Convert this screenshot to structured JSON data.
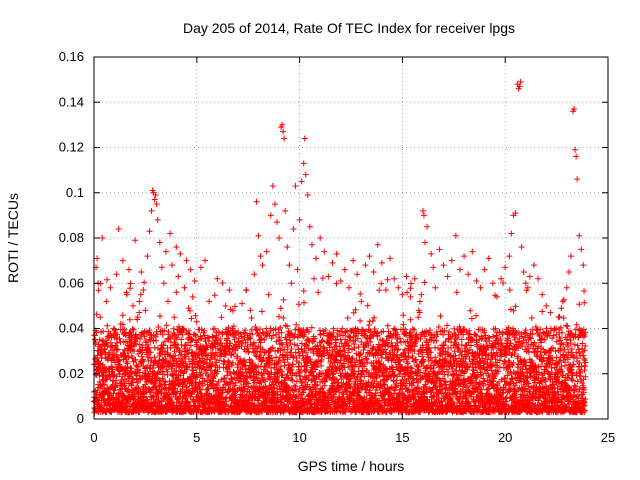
{
  "chart_data": {
    "type": "scatter",
    "title": "Day 205 of 2014, Rate Of TEC Index for receiver lpgs",
    "xlabel": "GPS time / hours",
    "ylabel": "ROTI / TECUs",
    "xlim": [
      0,
      25
    ],
    "ylim": [
      0,
      0.16
    ],
    "xticks": [
      0,
      5,
      10,
      15,
      20,
      25
    ],
    "yticks": [
      0,
      0.02,
      0.04,
      0.06,
      0.08,
      0.1,
      0.12,
      0.14,
      0.16
    ],
    "xtick_labels": [
      "0",
      "5",
      "10",
      "15",
      "20",
      "25"
    ],
    "ytick_labels": [
      "0",
      "0.02",
      "0.04",
      "0.06",
      "0.08",
      "0.1",
      "0.12",
      "0.14",
      "0.16"
    ],
    "grid": true,
    "marker": "+",
    "color": "#ff0000",
    "series": [
      {
        "points": [
          [
            0.0,
            0.012
          ],
          [
            0.1,
            0.067
          ],
          [
            0.15,
            0.071
          ],
          [
            0.2,
            0.06
          ],
          [
            0.3,
            0.045
          ],
          [
            0.4,
            0.08
          ],
          [
            0.5,
            0.031
          ],
          [
            0.6,
            0.052
          ],
          [
            0.7,
            0.022
          ],
          [
            0.8,
            0.058
          ],
          [
            0.9,
            0.015
          ],
          [
            1.0,
            0.036
          ],
          [
            1.1,
            0.064
          ],
          [
            1.2,
            0.084
          ],
          [
            1.3,
            0.042
          ],
          [
            1.4,
            0.07
          ],
          [
            1.5,
            0.028
          ],
          [
            1.6,
            0.055
          ],
          [
            1.7,
            0.066
          ],
          [
            1.8,
            0.038
          ],
          [
            1.9,
            0.05
          ],
          [
            2.0,
            0.079
          ],
          [
            2.1,
            0.044
          ],
          [
            2.2,
            0.033
          ],
          [
            2.3,
            0.065
          ],
          [
            2.4,
            0.057
          ],
          [
            2.5,
            0.048
          ],
          [
            2.6,
            0.072
          ],
          [
            2.7,
            0.083
          ],
          [
            2.8,
            0.092
          ],
          [
            2.85,
            0.101
          ],
          [
            2.9,
            0.1
          ],
          [
            2.95,
            0.097
          ],
          [
            3.0,
            0.099
          ],
          [
            3.05,
            0.095
          ],
          [
            3.1,
            0.088
          ],
          [
            3.2,
            0.078
          ],
          [
            3.3,
            0.067
          ],
          [
            3.4,
            0.06
          ],
          [
            3.5,
            0.074
          ],
          [
            3.6,
            0.052
          ],
          [
            3.7,
            0.082
          ],
          [
            3.8,
            0.068
          ],
          [
            3.9,
            0.045
          ],
          [
            4.0,
            0.076
          ],
          [
            4.1,
            0.063
          ],
          [
            4.2,
            0.073
          ],
          [
            4.3,
            0.04
          ],
          [
            4.4,
            0.058
          ],
          [
            4.5,
            0.07
          ],
          [
            4.6,
            0.049
          ],
          [
            4.7,
            0.066
          ],
          [
            4.8,
            0.054
          ],
          [
            4.9,
            0.061
          ],
          [
            5.0,
            0.043
          ],
          [
            5.2,
            0.067
          ],
          [
            5.4,
            0.07
          ],
          [
            5.6,
            0.052
          ],
          [
            5.8,
            0.036
          ],
          [
            6.0,
            0.062
          ],
          [
            6.2,
            0.045
          ],
          [
            6.4,
            0.05
          ],
          [
            6.6,
            0.03
          ],
          [
            6.8,
            0.041
          ],
          [
            7.0,
            0.038
          ],
          [
            7.2,
            0.051
          ],
          [
            7.4,
            0.057
          ],
          [
            7.6,
            0.048
          ],
          [
            7.8,
            0.064
          ],
          [
            7.9,
            0.096
          ],
          [
            8.0,
            0.081
          ],
          [
            8.1,
            0.072
          ],
          [
            8.2,
            0.068
          ],
          [
            8.4,
            0.074
          ],
          [
            8.5,
            0.055
          ],
          [
            8.6,
            0.09
          ],
          [
            8.7,
            0.103
          ],
          [
            8.8,
            0.095
          ],
          [
            8.9,
            0.087
          ],
          [
            9.0,
            0.08
          ],
          [
            9.1,
            0.129
          ],
          [
            9.15,
            0.13
          ],
          [
            9.2,
            0.127
          ],
          [
            9.25,
            0.124
          ],
          [
            9.3,
            0.092
          ],
          [
            9.4,
            0.076
          ],
          [
            9.5,
            0.068
          ],
          [
            9.6,
            0.06
          ],
          [
            9.7,
            0.084
          ],
          [
            9.8,
            0.103
          ],
          [
            9.9,
            0.066
          ],
          [
            10.0,
            0.088
          ],
          [
            10.1,
            0.105
          ],
          [
            10.2,
            0.113
          ],
          [
            10.25,
            0.124
          ],
          [
            10.3,
            0.108
          ],
          [
            10.4,
            0.099
          ],
          [
            10.5,
            0.085
          ],
          [
            10.6,
            0.077
          ],
          [
            10.7,
            0.062
          ],
          [
            10.8,
            0.071
          ],
          [
            10.9,
            0.056
          ],
          [
            11.0,
            0.08
          ],
          [
            11.2,
            0.074
          ],
          [
            11.4,
            0.063
          ],
          [
            11.6,
            0.069
          ],
          [
            11.8,
            0.073
          ],
          [
            12.0,
            0.061
          ],
          [
            12.2,
            0.066
          ],
          [
            12.4,
            0.058
          ],
          [
            12.6,
            0.07
          ],
          [
            12.8,
            0.064
          ],
          [
            13.0,
            0.052
          ],
          [
            13.2,
            0.068
          ],
          [
            13.4,
            0.072
          ],
          [
            13.6,
            0.065
          ],
          [
            13.8,
            0.077
          ],
          [
            14.0,
            0.069
          ],
          [
            14.2,
            0.057
          ],
          [
            14.4,
            0.071
          ],
          [
            14.6,
            0.062
          ],
          [
            14.8,
            0.058
          ],
          [
            15.0,
            0.055
          ],
          [
            15.2,
            0.063
          ],
          [
            15.4,
            0.054
          ],
          [
            15.6,
            0.062
          ],
          [
            15.8,
            0.048
          ],
          [
            16.0,
            0.092
          ],
          [
            16.05,
            0.09
          ],
          [
            16.1,
            0.078
          ],
          [
            16.2,
            0.085
          ],
          [
            16.4,
            0.073
          ],
          [
            16.5,
            0.067
          ],
          [
            16.6,
            0.058
          ],
          [
            16.8,
            0.075
          ],
          [
            17.0,
            0.068
          ],
          [
            17.2,
            0.063
          ],
          [
            17.4,
            0.07
          ],
          [
            17.6,
            0.081
          ],
          [
            17.8,
            0.066
          ],
          [
            18.0,
            0.072
          ],
          [
            18.2,
            0.064
          ],
          [
            18.4,
            0.074
          ],
          [
            18.6,
            0.061
          ],
          [
            18.8,
            0.058
          ],
          [
            19.0,
            0.066
          ],
          [
            19.2,
            0.071
          ],
          [
            19.4,
            0.06
          ],
          [
            19.6,
            0.054
          ],
          [
            19.8,
            0.062
          ],
          [
            20.0,
            0.067
          ],
          [
            20.2,
            0.072
          ],
          [
            20.3,
            0.082
          ],
          [
            20.4,
            0.09
          ],
          [
            20.5,
            0.091
          ],
          [
            20.6,
            0.148
          ],
          [
            20.65,
            0.146
          ],
          [
            20.7,
            0.147
          ],
          [
            20.75,
            0.149
          ],
          [
            20.8,
            0.076
          ],
          [
            20.9,
            0.065
          ],
          [
            21.0,
            0.06
          ],
          [
            21.1,
            0.058
          ],
          [
            21.2,
            0.063
          ],
          [
            21.4,
            0.068
          ],
          [
            21.6,
            0.062
          ],
          [
            21.8,
            0.055
          ],
          [
            22.0,
            0.05
          ],
          [
            22.2,
            0.047
          ],
          [
            22.4,
            0.04
          ],
          [
            22.6,
            0.045
          ],
          [
            22.8,
            0.052
          ],
          [
            23.0,
            0.058
          ],
          [
            23.1,
            0.065
          ],
          [
            23.2,
            0.072
          ],
          [
            23.3,
            0.136
          ],
          [
            23.35,
            0.137
          ],
          [
            23.4,
            0.119
          ],
          [
            23.45,
            0.116
          ],
          [
            23.5,
            0.106
          ],
          [
            23.6,
            0.081
          ],
          [
            23.7,
            0.075
          ],
          [
            23.8,
            0.068
          ],
          [
            23.9,
            0.025
          ]
        ]
      }
    ],
    "dense_band": {
      "x_range": [
        0,
        23.9
      ],
      "y_floor": 0.003,
      "y_typical_top": 0.04
    }
  }
}
